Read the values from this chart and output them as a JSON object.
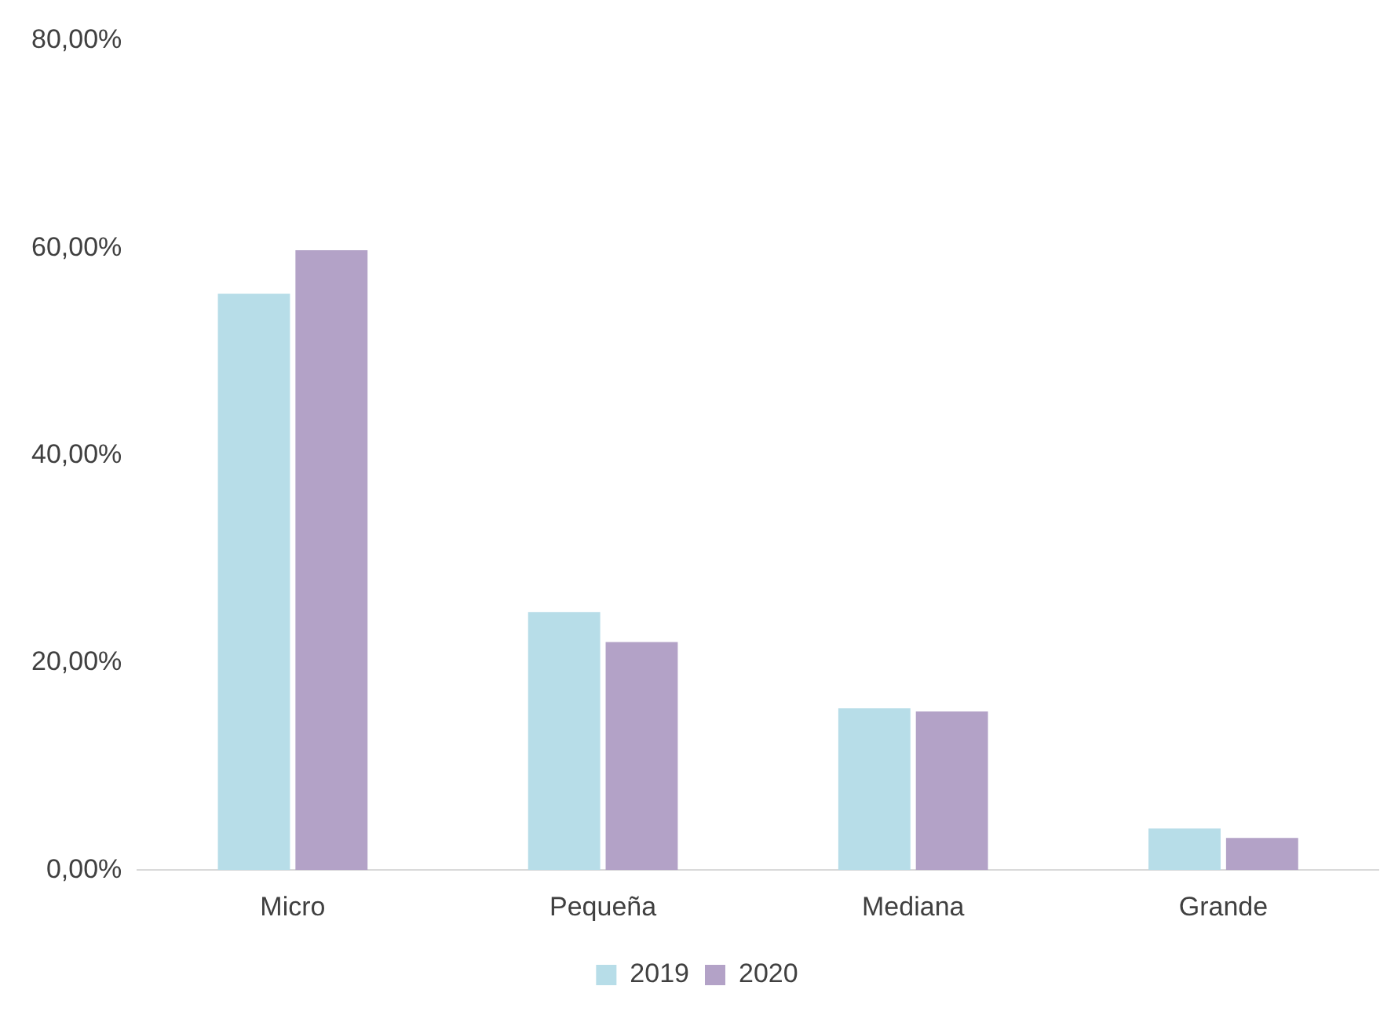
{
  "chart_data": {
    "type": "bar",
    "categories": [
      "Micro",
      "Pequeña",
      "Mediana",
      "Grande"
    ],
    "series": [
      {
        "name": "2019",
        "color": "#b7dde8",
        "values": [
          55.6,
          24.9,
          15.6,
          4.0
        ]
      },
      {
        "name": "2020",
        "color": "#b3a2c7",
        "values": [
          59.8,
          22.0,
          15.3,
          3.1
        ]
      }
    ],
    "ylim": [
      0,
      80
    ],
    "yticks": [
      {
        "value": 0,
        "label": "0,00%"
      },
      {
        "value": 20,
        "label": "20,00%"
      },
      {
        "value": 40,
        "label": "40,00%"
      },
      {
        "value": 60,
        "label": "60,00%"
      },
      {
        "value": 80,
        "label": "80,00%"
      }
    ],
    "grid": false,
    "legend": "bottom"
  }
}
